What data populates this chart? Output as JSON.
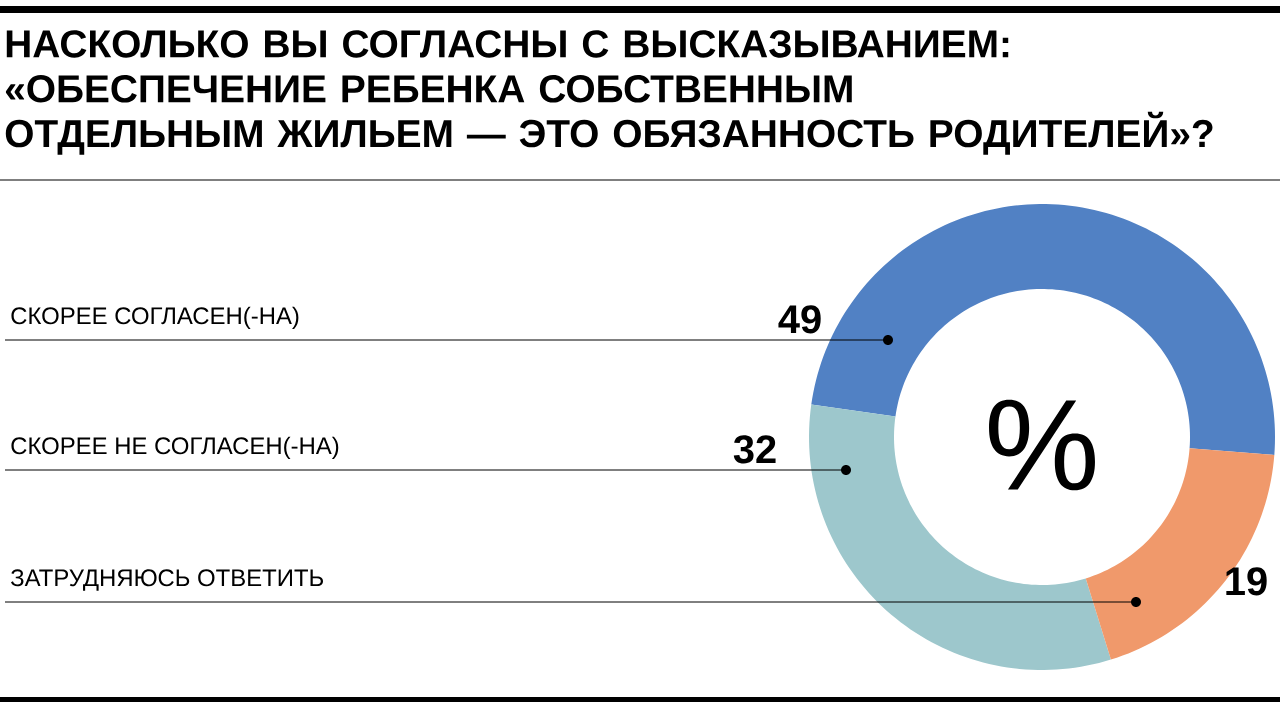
{
  "chart_data": {
    "type": "donut",
    "title": "НАСКОЛЬКО ВЫ СОГЛАСНЫ С ВЫСКАЗЫВАНИЕМ: «ОБЕСПЕЧЕНИЕ РЕБЕНКА СОБСТВЕННЫМ ОТДЕЛЬНЫМ ЖИЛЬЕМ — ЭТО ОБЯЗАННОСТЬ РОДИТЕЛЕЙ»?",
    "categories": [
      "СКОРЕЕ СОГЛАСЕН(-НА)",
      "СКОРЕЕ НЕ СОГЛАСЕН(-НА)",
      "ЗАТРУДНЯЮСЬ ОТВЕТИТЬ"
    ],
    "values": [
      49,
      32,
      19
    ],
    "colors": [
      "#5181c4",
      "#9dc7cc",
      "#f0996b"
    ],
    "data_labels": true,
    "annotations": [
      "%"
    ]
  }
}
